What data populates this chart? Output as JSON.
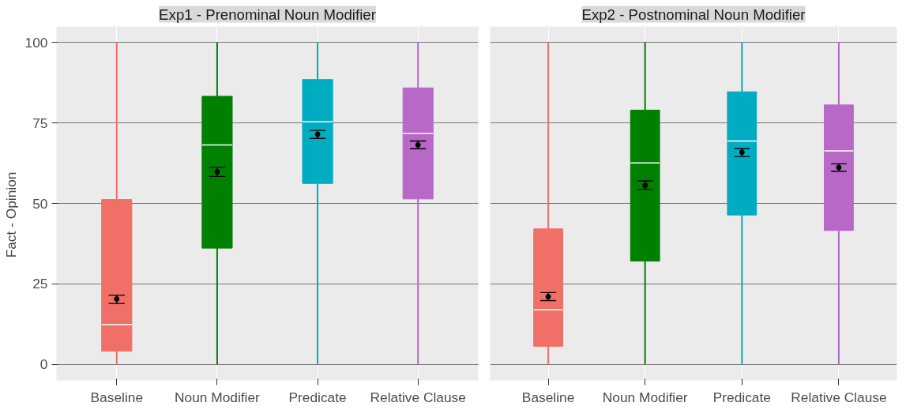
{
  "chart_data": [
    {
      "type": "box",
      "title": "Exp1 - Prenominal Noun Modifier",
      "ylabel": "Fact    -    Opinion",
      "categories": [
        "Baseline",
        "Noun Modifier",
        "Predicate",
        "Relative Clause"
      ],
      "colors": [
        "#f06f66",
        "#008000",
        "#00acc2",
        "#b868c7"
      ],
      "boxes": [
        {
          "low": 0,
          "q1": 4.1,
          "median": 12.4,
          "q3": 51.2,
          "high": 100
        },
        {
          "low": 0,
          "q1": 36.1,
          "median": 68.2,
          "q3": 83.3,
          "high": 100
        },
        {
          "low": 0,
          "q1": 56.2,
          "median": 75.4,
          "q3": 88.5,
          "high": 100
        },
        {
          "low": 0,
          "q1": 51.4,
          "median": 71.8,
          "q3": 85.9,
          "high": 100
        }
      ],
      "series": [
        {
          "type": "scatter",
          "x": [
            "Baseline",
            "Noun Modifier",
            "Predicate",
            "Relative Clause"
          ],
          "values": [
            20.3,
            59.8,
            71.5,
            68.2
          ],
          "errors": [
            [
              18.9,
              21.5
            ],
            [
              58.4,
              61.2
            ],
            [
              70.2,
              72.7
            ],
            [
              67.0,
              69.4
            ]
          ],
          "color": "#000000"
        }
      ],
      "ylim": [
        -5,
        105
      ],
      "yticks": [
        0,
        25,
        50,
        75,
        100
      ],
      "grid": true,
      "marker": "circle"
    },
    {
      "type": "box",
      "title": "Exp2 - Postnominal Noun Modifier",
      "categories": [
        "Baseline",
        "Noun Modifier",
        "Predicate",
        "Relative Clause"
      ],
      "colors": [
        "#f06f66",
        "#008000",
        "#00acc2",
        "#b868c7"
      ],
      "boxes": [
        {
          "low": 0,
          "q1": 5.6,
          "median": 17.0,
          "q3": 42.1,
          "high": 100
        },
        {
          "low": 0,
          "q1": 32.1,
          "median": 62.6,
          "q3": 79.0,
          "high": 100
        },
        {
          "low": 0,
          "q1": 46.4,
          "median": 69.4,
          "q3": 84.7,
          "high": 100
        },
        {
          "low": 0,
          "q1": 41.6,
          "median": 66.3,
          "q3": 80.6,
          "high": 100
        }
      ],
      "series": [
        {
          "type": "scatter",
          "x": [
            "Baseline",
            "Noun Modifier",
            "Predicate",
            "Relative Clause"
          ],
          "values": [
            21.0,
            55.6,
            65.9,
            61.2
          ],
          "errors": [
            [
              19.8,
              22.3
            ],
            [
              54.4,
              57.0
            ],
            [
              64.6,
              67.0
            ],
            [
              60.0,
              62.3
            ]
          ],
          "color": "#000000"
        }
      ],
      "ylim": [
        -5,
        105
      ],
      "yticks": [
        0,
        25,
        50,
        75,
        100
      ],
      "grid": true,
      "marker": "circle",
      "tick_labels": "x"
    }
  ]
}
